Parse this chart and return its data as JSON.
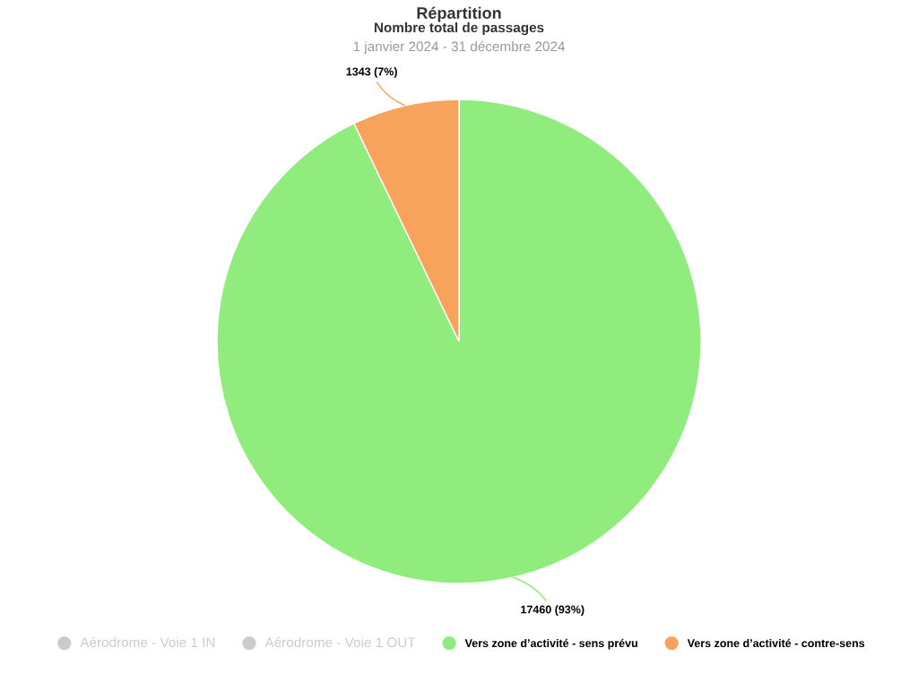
{
  "chart_data": {
    "type": "pie",
    "title": "Répartition",
    "subtitle": "Nombre total de passages",
    "annotations": [
      "1 janvier 2024 - 31 décembre 2024"
    ],
    "categories": [
      "Aérodrome - Voie 1 IN",
      "Aérodrome - Voie 1 OUT",
      "Vers zone d’activité - sens prévu",
      "Vers zone d’activité - contre-sens"
    ],
    "values": [
      null,
      null,
      17460,
      1343
    ],
    "colors": [
      "#cccccc",
      "#cccccc",
      "#90ed7d",
      "#f7a35c"
    ],
    "value_labels": [
      null,
      null,
      "17460 (93%)",
      "1343 (7%)"
    ],
    "legend": "bottom"
  }
}
